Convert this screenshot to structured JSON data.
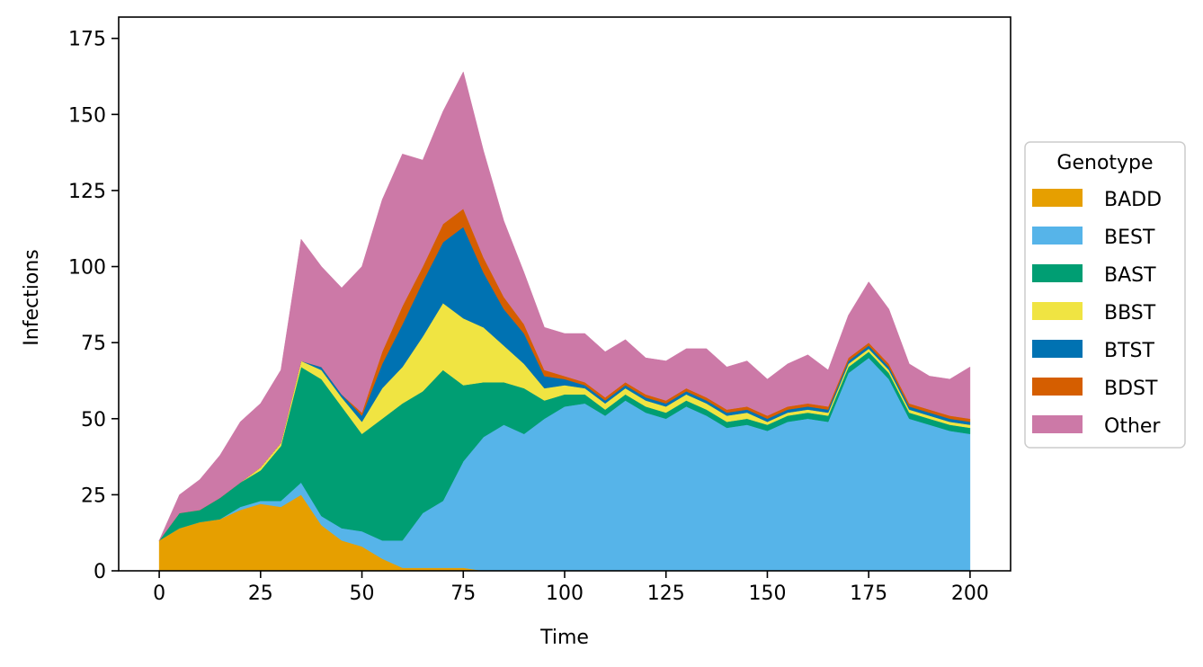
{
  "chart_data": {
    "type": "area",
    "title": "",
    "xlabel": "Time",
    "ylabel": "Infections",
    "xlim": [
      -10,
      210
    ],
    "ylim": [
      0,
      182
    ],
    "xticks": [
      0,
      25,
      50,
      75,
      100,
      125,
      150,
      175,
      200
    ],
    "yticks": [
      0,
      25,
      50,
      75,
      100,
      125,
      150,
      175
    ],
    "grid": false,
    "legend": {
      "title": "Genotype",
      "placement": "right-outside"
    },
    "x": [
      0,
      5,
      10,
      15,
      20,
      25,
      30,
      35,
      40,
      45,
      50,
      55,
      60,
      65,
      70,
      75,
      80,
      85,
      90,
      95,
      100,
      105,
      110,
      115,
      120,
      125,
      130,
      135,
      140,
      145,
      150,
      155,
      160,
      165,
      170,
      175,
      180,
      185,
      190,
      195,
      200
    ],
    "series": [
      {
        "name": "BADD",
        "color": "#e69f00",
        "values": [
          10,
          14,
          16,
          17,
          20,
          22,
          21,
          25,
          15,
          10,
          8,
          4,
          1,
          1,
          1,
          1,
          0,
          0,
          0,
          0,
          0,
          0,
          0,
          0,
          0,
          0,
          0,
          0,
          0,
          0,
          0,
          0,
          0,
          0,
          0,
          0,
          0,
          0,
          0,
          0,
          0
        ]
      },
      {
        "name": "BEST",
        "color": "#56b4e9",
        "values": [
          0,
          0,
          0,
          0,
          1,
          1,
          2,
          4,
          3,
          4,
          5,
          6,
          9,
          18,
          22,
          35,
          44,
          48,
          45,
          50,
          54,
          55,
          51,
          56,
          52,
          50,
          54,
          51,
          47,
          48,
          46,
          49,
          50,
          49,
          65,
          70,
          63,
          50,
          48,
          46,
          45
        ]
      },
      {
        "name": "BAST",
        "color": "#009e73",
        "values": [
          0,
          5,
          4,
          7,
          8,
          10,
          18,
          38,
          45,
          40,
          32,
          40,
          45,
          40,
          43,
          25,
          18,
          14,
          15,
          6,
          4,
          3,
          2,
          2,
          2,
          2,
          2,
          2,
          2,
          2,
          2,
          2,
          2,
          2,
          2,
          2,
          2,
          2,
          2,
          2,
          2
        ]
      },
      {
        "name": "BBST",
        "color": "#f0e442",
        "values": [
          0,
          0,
          0,
          0,
          0,
          1,
          1,
          2,
          3,
          3,
          4,
          10,
          12,
          18,
          22,
          22,
          18,
          12,
          8,
          4,
          3,
          2,
          2,
          2,
          2,
          2,
          2,
          2,
          2,
          2,
          1,
          1,
          1,
          1,
          1,
          1,
          1,
          1,
          1,
          1,
          1
        ]
      },
      {
        "name": "BTST",
        "color": "#0072b2",
        "values": [
          0,
          0,
          0,
          0,
          0,
          0,
          0,
          0,
          1,
          1,
          2,
          8,
          14,
          18,
          20,
          30,
          18,
          12,
          10,
          4,
          2,
          1,
          1,
          1,
          1,
          1,
          1,
          1,
          1,
          1,
          1,
          1,
          1,
          1,
          1,
          1,
          1,
          1,
          1,
          1,
          1
        ]
      },
      {
        "name": "BDST",
        "color": "#d55e00",
        "values": [
          0,
          0,
          0,
          0,
          0,
          0,
          0,
          0,
          0,
          0,
          1,
          4,
          6,
          5,
          6,
          6,
          5,
          4,
          3,
          2,
          1,
          1,
          1,
          1,
          1,
          1,
          1,
          1,
          1,
          1,
          1,
          1,
          1,
          1,
          1,
          1,
          1,
          1,
          1,
          1,
          1
        ]
      },
      {
        "name": "Other",
        "color": "#cc79a7",
        "values": [
          0,
          6,
          10,
          14,
          20,
          21,
          24,
          40,
          33,
          35,
          48,
          50,
          50,
          35,
          37,
          45,
          35,
          25,
          17,
          14,
          14,
          16,
          15,
          14,
          12,
          13,
          13,
          16,
          14,
          15,
          12,
          14,
          16,
          12,
          14,
          20,
          18,
          13,
          11,
          12,
          17
        ]
      }
    ]
  }
}
